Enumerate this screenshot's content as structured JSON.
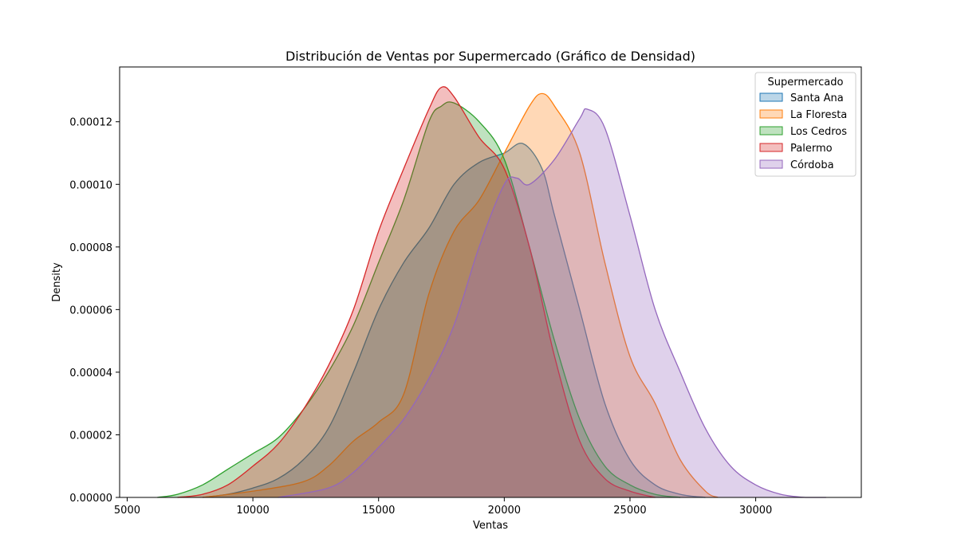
{
  "chart_data": {
    "type": "area",
    "title": "Distribución de Ventas por Supermercado (Gráfico de Densidad)",
    "xlabel": "Ventas",
    "ylabel": "Density",
    "xlim": [
      4700,
      34200
    ],
    "ylim": [
      0,
      0.0001375
    ],
    "x_ticks": [
      5000,
      10000,
      15000,
      20000,
      25000,
      30000
    ],
    "x_tick_labels": [
      "5000",
      "10000",
      "15000",
      "20000",
      "25000",
      "30000"
    ],
    "y_ticks": [
      0,
      2e-05,
      4e-05,
      6e-05,
      8e-05,
      0.0001,
      0.00012
    ],
    "y_tick_labels": [
      "0.00000",
      "0.00002",
      "0.00004",
      "0.00006",
      "0.00008",
      "0.00010",
      "0.00012"
    ],
    "grid": false,
    "legend": {
      "title": "Supermercado",
      "placement": "top-right"
    },
    "series": [
      {
        "name": "Santa Ana",
        "color": "#1f77b4",
        "x": [
          8000,
          9000,
          10000,
          11000,
          12000,
          13000,
          14000,
          15000,
          16000,
          17000,
          18000,
          19000,
          20000,
          20750,
          21500,
          22000,
          23000,
          24000,
          25000,
          26000,
          27000,
          28000
        ],
        "y": [
          0.0,
          1e-06,
          3e-06,
          6e-06,
          1.2e-05,
          2.2e-05,
          4e-05,
          6e-05,
          7.5e-05,
          8.6e-05,
          0.0001,
          0.000107,
          0.00011,
          0.000113,
          0.000105,
          9e-05,
          6e-05,
          3e-05,
          1.2e-05,
          4e-06,
          1e-06,
          0.0
        ]
      },
      {
        "name": "La Floresta",
        "color": "#ff7f0e",
        "x": [
          8000,
          10000,
          12000,
          13000,
          14000,
          15000,
          16000,
          17000,
          18000,
          19000,
          20000,
          21000,
          21500,
          22000,
          23000,
          24000,
          25000,
          26000,
          27000,
          28000,
          28500
        ],
        "y": [
          0.0,
          2e-06,
          5e-06,
          1e-05,
          1.8e-05,
          2.4e-05,
          3.3e-05,
          6.5e-05,
          8.5e-05,
          9.5e-05,
          0.00011,
          0.000125,
          0.000129,
          0.000125,
          0.00011,
          7.5e-05,
          4.5e-05,
          3e-05,
          1.2e-05,
          2e-06,
          0.0
        ]
      },
      {
        "name": "Los Cedros",
        "color": "#2ca02c",
        "x": [
          6200,
          7000,
          8000,
          9000,
          10000,
          11000,
          12000,
          13000,
          14000,
          15000,
          16000,
          17000,
          17500,
          18000,
          19000,
          20000,
          21000,
          22000,
          23000,
          24000,
          25000,
          26000,
          27000
        ],
        "y": [
          0.0,
          1e-06,
          4e-06,
          9e-06,
          1.4e-05,
          1.9e-05,
          2.8e-05,
          4e-05,
          5.5e-05,
          7.5e-05,
          9.5e-05,
          0.00012,
          0.000125,
          0.000126,
          0.00012,
          0.000108,
          8e-05,
          5e-05,
          2.5e-05,
          1e-05,
          4e-06,
          1e-06,
          0.0
        ]
      },
      {
        "name": "Palermo",
        "color": "#d62728",
        "x": [
          7000,
          8000,
          9000,
          10000,
          11000,
          12000,
          13000,
          14000,
          15000,
          16000,
          17000,
          17500,
          18000,
          19000,
          20000,
          21000,
          22000,
          23000,
          24000,
          25000,
          26000
        ],
        "y": [
          0.0,
          1e-06,
          4e-06,
          1e-05,
          1.7e-05,
          2.8e-05,
          4.2e-05,
          6e-05,
          8.5e-05,
          0.000105,
          0.000124,
          0.000131,
          0.000128,
          0.000115,
          0.000105,
          8e-05,
          4.5e-05,
          1.8e-05,
          6e-06,
          2e-06,
          0.0
        ]
      },
      {
        "name": "Córdoba",
        "color": "#9467bd",
        "x": [
          11000,
          13000,
          14000,
          15000,
          16000,
          17000,
          18000,
          19000,
          20000,
          20500,
          21000,
          22000,
          23000,
          23300,
          24000,
          25000,
          26000,
          27000,
          28000,
          29000,
          30000,
          31000,
          32000,
          32800
        ],
        "y": [
          0.0,
          3e-06,
          8e-06,
          1.6e-05,
          2.5e-05,
          3.8e-05,
          5.5e-05,
          8e-05,
          0.0001,
          0.000102,
          0.0001,
          0.000108,
          0.000121,
          0.000124,
          0.000118,
          9e-05,
          6e-05,
          4e-05,
          2.2e-05,
          1e-05,
          4e-06,
          1e-06,
          0.0,
          0.0
        ]
      }
    ]
  }
}
